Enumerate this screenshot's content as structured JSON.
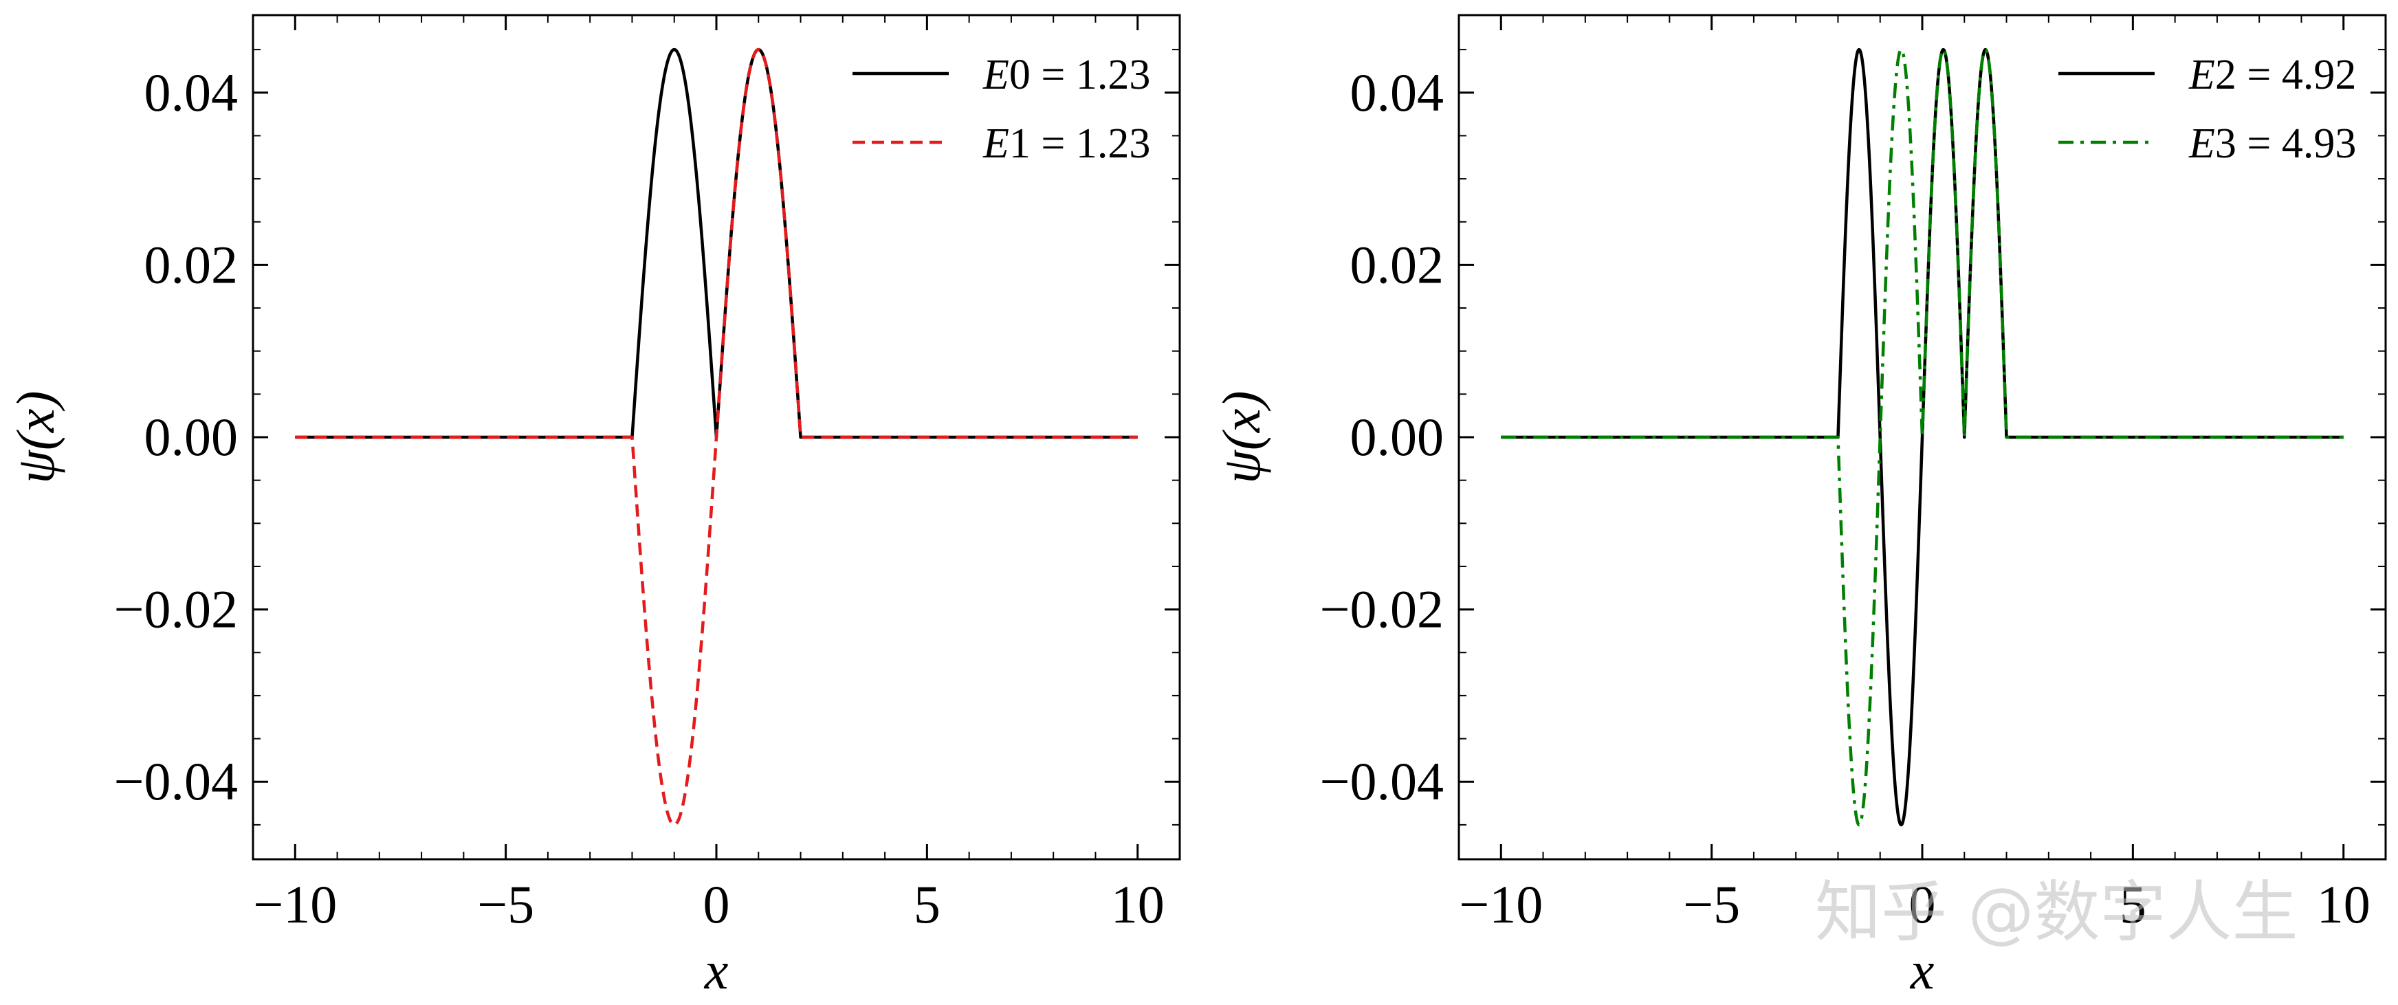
{
  "chart_data": [
    {
      "type": "line",
      "title": "",
      "xlabel": "x",
      "ylabel": "ψ(x)",
      "xlim": [
        -11,
        11
      ],
      "ylim": [
        -0.049,
        0.049
      ],
      "xticks": [
        -10,
        -5,
        0,
        5,
        10
      ],
      "xtick_labels": [
        "−10",
        "−5",
        "0",
        "5",
        "10"
      ],
      "yticks": [
        0.04,
        0.02,
        0.0,
        -0.02,
        -0.04
      ],
      "ytick_labels": [
        "0.04",
        "0.02",
        "0.00",
        "−0.02",
        "−0.04"
      ],
      "grid": false,
      "legend_position": "top-right",
      "series": [
        {
          "name": "E0 = 1.23",
          "label_var": "E",
          "label_sub": "0",
          "label_value": "= 1.23",
          "color": "#000000",
          "style": "solid",
          "formula": "abs_sin",
          "x": [
            -10,
            10
          ],
          "well": [
            -2,
            2
          ],
          "amplitude": 0.045,
          "half_period": 2,
          "sign": 1
        },
        {
          "name": "E1 = 1.23",
          "label_var": "E",
          "label_sub": "1",
          "label_value": "= 1.23",
          "color": "#e41a1c",
          "style": "dashed",
          "formula": "sin",
          "x": [
            -10,
            10
          ],
          "well": [
            -2,
            2
          ],
          "amplitude": 0.045,
          "half_period": 2,
          "sign": -1
        }
      ]
    },
    {
      "type": "line",
      "title": "",
      "xlabel": "x",
      "ylabel": "ψ(x)",
      "xlim": [
        -11,
        11
      ],
      "ylim": [
        -0.049,
        0.049
      ],
      "xticks": [
        -10,
        -5,
        0,
        5,
        10
      ],
      "xtick_labels": [
        "−10",
        "−5",
        "0",
        "5",
        "10"
      ],
      "yticks": [
        0.04,
        0.02,
        0.0,
        -0.02,
        -0.04
      ],
      "ytick_labels": [
        "0.04",
        "0.02",
        "0.00",
        "−0.02",
        "−0.04"
      ],
      "grid": false,
      "legend_position": "top-right",
      "series": [
        {
          "name": "E2 = 4.92",
          "label_var": "E",
          "label_sub": "2",
          "label_value": "= 4.92",
          "color": "#000000",
          "style": "solid",
          "formula": "sin_abs_left",
          "x": [
            -10,
            10
          ],
          "well": [
            -2,
            2
          ],
          "amplitude": 0.045,
          "half_period": 1,
          "sign": 1
        },
        {
          "name": "E3 = 4.93",
          "label_var": "E",
          "label_sub": "3",
          "label_value": "= 4.93",
          "color": "#008000",
          "style": "dashdot",
          "formula": "sin_signed_left",
          "x": [
            -10,
            10
          ],
          "well": [
            -2,
            2
          ],
          "amplitude": 0.045,
          "half_period": 1,
          "sign": 1
        }
      ]
    }
  ],
  "watermark": {
    "text": "知乎 @数字人生"
  }
}
